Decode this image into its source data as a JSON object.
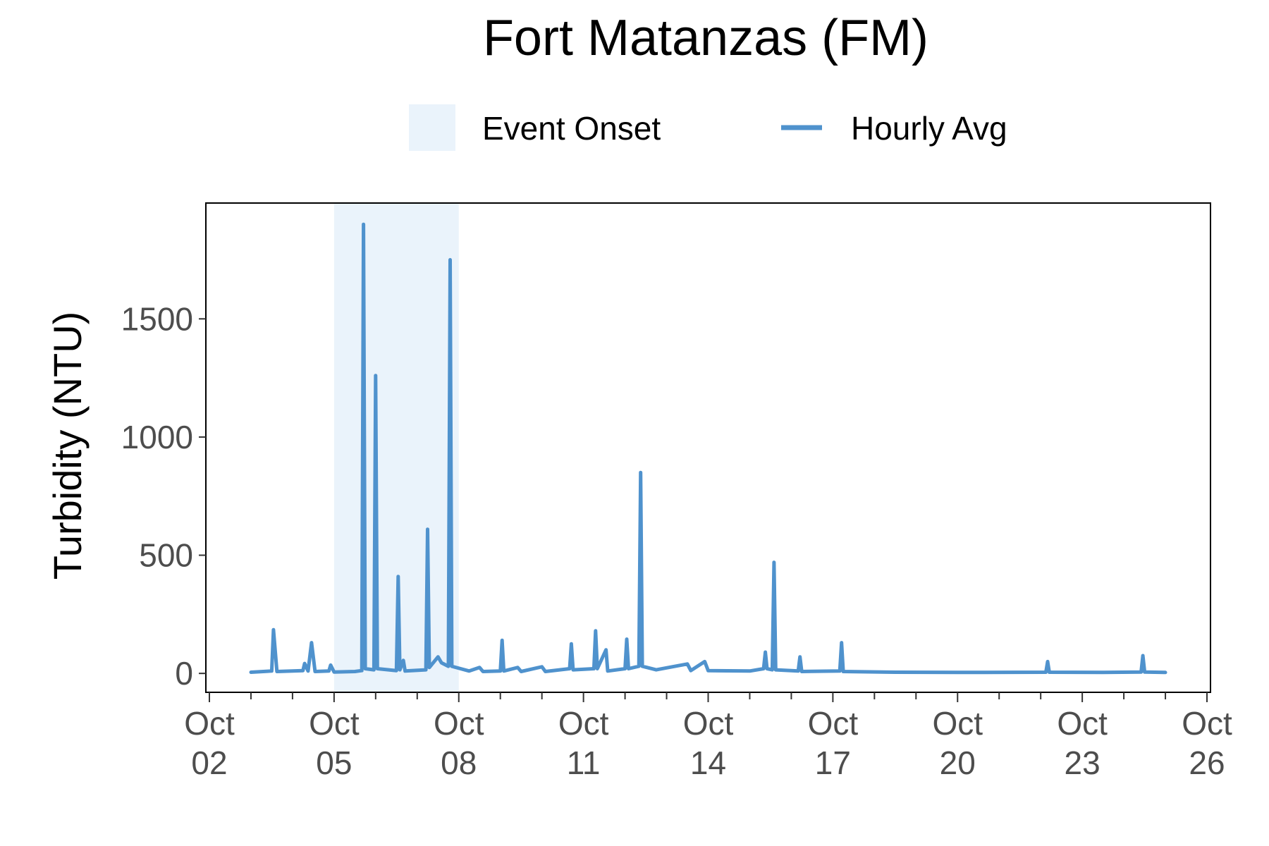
{
  "chart_data": {
    "type": "line",
    "title": "Fort Matanzas (FM)",
    "xlabel": "",
    "ylabel": "Turbidity (NTU)",
    "x_range": [
      "2024-10-02",
      "2024-10-26"
    ],
    "ylim": [
      -80,
      1990
    ],
    "y_ticks": [
      {
        "value": 0,
        "label": "0"
      },
      {
        "value": 500,
        "label": "500"
      },
      {
        "value": 1000,
        "label": "1000"
      },
      {
        "value": 1500,
        "label": "1500"
      }
    ],
    "x_ticks": [
      {
        "date": "2024-10-02",
        "line1": "Oct",
        "line2": "02"
      },
      {
        "date": "2024-10-05",
        "line1": "Oct",
        "line2": "05"
      },
      {
        "date": "2024-10-08",
        "line1": "Oct",
        "line2": "08"
      },
      {
        "date": "2024-10-11",
        "line1": "Oct",
        "line2": "11"
      },
      {
        "date": "2024-10-14",
        "line1": "Oct",
        "line2": "14"
      },
      {
        "date": "2024-10-17",
        "line1": "Oct",
        "line2": "17"
      },
      {
        "date": "2024-10-20",
        "line1": "Oct",
        "line2": "20"
      },
      {
        "date": "2024-10-23",
        "line1": "Oct",
        "line2": "23"
      },
      {
        "date": "2024-10-26",
        "line1": "Oct",
        "line2": "26"
      }
    ],
    "minor_tick_dates": [
      "2024-10-03",
      "2024-10-04",
      "2024-10-06",
      "2024-10-07",
      "2024-10-09",
      "2024-10-10",
      "2024-10-12",
      "2024-10-13",
      "2024-10-15",
      "2024-10-16",
      "2024-10-18",
      "2024-10-19",
      "2024-10-21",
      "2024-10-22",
      "2024-10-24",
      "2024-10-25"
    ],
    "grid": false,
    "legend_position": "top",
    "legend": [
      {
        "label": "Event Onset",
        "kind": "fill",
        "color": "#eaf3fb"
      },
      {
        "label": "Hourly Avg",
        "kind": "line",
        "color": "#4f92cd"
      }
    ],
    "shaded_regions": [
      {
        "label": "Event Onset",
        "start": "2024-10-05 00:00",
        "end": "2024-10-08 00:00",
        "color": "#eaf3fb"
      }
    ],
    "series": [
      {
        "name": "Hourly Avg",
        "color": "#4f92cd",
        "points": [
          [
            "2024-10-03 00:00",
            5
          ],
          [
            "2024-10-03 12:00",
            10
          ],
          [
            "2024-10-03 13:00",
            185
          ],
          [
            "2024-10-03 15:00",
            8
          ],
          [
            "2024-10-04 06:00",
            12
          ],
          [
            "2024-10-04 07:00",
            42
          ],
          [
            "2024-10-04 09:00",
            10
          ],
          [
            "2024-10-04 11:00",
            130
          ],
          [
            "2024-10-04 13:00",
            8
          ],
          [
            "2024-10-04 21:00",
            10
          ],
          [
            "2024-10-04 22:00",
            35
          ],
          [
            "2024-10-05 00:00",
            6
          ],
          [
            "2024-10-05 12:00",
            8
          ],
          [
            "2024-10-05 16:00",
            12
          ],
          [
            "2024-10-05 17:00",
            1900
          ],
          [
            "2024-10-05 18:00",
            20
          ],
          [
            "2024-10-05 23:00",
            15
          ],
          [
            "2024-10-06 00:00",
            1260
          ],
          [
            "2024-10-06 01:00",
            20
          ],
          [
            "2024-10-06 12:00",
            12
          ],
          [
            "2024-10-06 13:00",
            410
          ],
          [
            "2024-10-06 14:00",
            15
          ],
          [
            "2024-10-06 16:00",
            55
          ],
          [
            "2024-10-06 17:00",
            10
          ],
          [
            "2024-10-07 05:00",
            15
          ],
          [
            "2024-10-07 06:00",
            610
          ],
          [
            "2024-10-07 07:00",
            25
          ],
          [
            "2024-10-07 12:00",
            70
          ],
          [
            "2024-10-07 14:00",
            45
          ],
          [
            "2024-10-07 18:00",
            30
          ],
          [
            "2024-10-07 19:00",
            1750
          ],
          [
            "2024-10-07 20:00",
            30
          ],
          [
            "2024-10-08 06:00",
            10
          ],
          [
            "2024-10-08 12:00",
            25
          ],
          [
            "2024-10-08 14:00",
            8
          ],
          [
            "2024-10-09 00:00",
            10
          ],
          [
            "2024-10-09 01:00",
            140
          ],
          [
            "2024-10-09 02:00",
            10
          ],
          [
            "2024-10-09 10:00",
            25
          ],
          [
            "2024-10-09 12:00",
            8
          ],
          [
            "2024-10-10 00:00",
            28
          ],
          [
            "2024-10-10 02:00",
            8
          ],
          [
            "2024-10-10 16:00",
            20
          ],
          [
            "2024-10-10 17:00",
            125
          ],
          [
            "2024-10-10 18:00",
            15
          ],
          [
            "2024-10-11 06:00",
            20
          ],
          [
            "2024-10-11 07:00",
            180
          ],
          [
            "2024-10-11 08:00",
            20
          ],
          [
            "2024-10-11 13:00",
            100
          ],
          [
            "2024-10-11 14:00",
            10
          ],
          [
            "2024-10-12 00:00",
            20
          ],
          [
            "2024-10-12 01:00",
            145
          ],
          [
            "2024-10-12 02:00",
            20
          ],
          [
            "2024-10-12 08:00",
            30
          ],
          [
            "2024-10-12 09:00",
            850
          ],
          [
            "2024-10-12 10:00",
            30
          ],
          [
            "2024-10-12 18:00",
            15
          ],
          [
            "2024-10-13 12:00",
            40
          ],
          [
            "2024-10-13 14:00",
            12
          ],
          [
            "2024-10-13 22:00",
            50
          ],
          [
            "2024-10-14 00:00",
            12
          ],
          [
            "2024-10-15 00:00",
            10
          ],
          [
            "2024-10-15 08:00",
            20
          ],
          [
            "2024-10-15 09:00",
            90
          ],
          [
            "2024-10-15 10:00",
            20
          ],
          [
            "2024-10-15 13:00",
            15
          ],
          [
            "2024-10-15 14:00",
            470
          ],
          [
            "2024-10-15 15:00",
            15
          ],
          [
            "2024-10-16 04:00",
            10
          ],
          [
            "2024-10-16 05:00",
            70
          ],
          [
            "2024-10-16 06:00",
            8
          ],
          [
            "2024-10-17 04:00",
            10
          ],
          [
            "2024-10-17 05:00",
            130
          ],
          [
            "2024-10-17 06:00",
            8
          ],
          [
            "2024-10-18 12:00",
            5
          ],
          [
            "2024-10-20 00:00",
            4
          ],
          [
            "2024-10-22 03:00",
            5
          ],
          [
            "2024-10-22 04:00",
            50
          ],
          [
            "2024-10-22 05:00",
            5
          ],
          [
            "2024-10-23 12:00",
            4
          ],
          [
            "2024-10-24 10:00",
            6
          ],
          [
            "2024-10-24 11:00",
            75
          ],
          [
            "2024-10-24 12:00",
            6
          ],
          [
            "2024-10-25 00:00",
            4
          ]
        ]
      }
    ]
  }
}
